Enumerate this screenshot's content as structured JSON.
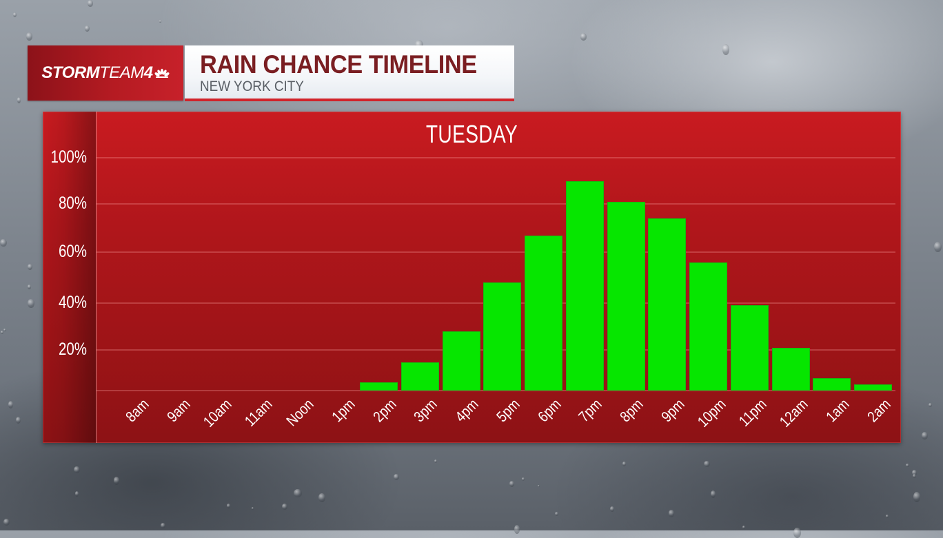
{
  "header": {
    "logo": {
      "bold": "STORM",
      "light": "TEAM",
      "number": "4",
      "icon": "nbc-peacock-icon"
    },
    "title": "RAIN CHANCE TIMELINE",
    "subtitle": "NEW YORK CITY"
  },
  "colors": {
    "panel_red": "#b0161b",
    "bar_green": "#06e600",
    "title_text": "#7a1e22",
    "accent_red": "#d1232a"
  },
  "chart_data": {
    "type": "bar",
    "title": "TUESDAY",
    "subtitle": "Rain Chance Timeline - New York City",
    "xlabel": "",
    "ylabel": "",
    "ylim": [
      0,
      100
    ],
    "grid": true,
    "legend": null,
    "y_ticks": [
      "20%",
      "40%",
      "60%",
      "80%",
      "100%"
    ],
    "categories": [
      "8am",
      "9am",
      "10am",
      "11am",
      "Noon",
      "1pm",
      "2pm",
      "3pm",
      "4pm",
      "5pm",
      "6pm",
      "7pm",
      "8pm",
      "9pm",
      "10pm",
      "11pm",
      "12am",
      "1am",
      "2am"
    ],
    "values": [
      0,
      0,
      0,
      0,
      0,
      0,
      4,
      14,
      28,
      48,
      67,
      90,
      81,
      74,
      56,
      39,
      21,
      6,
      3
    ],
    "unit": "%"
  }
}
